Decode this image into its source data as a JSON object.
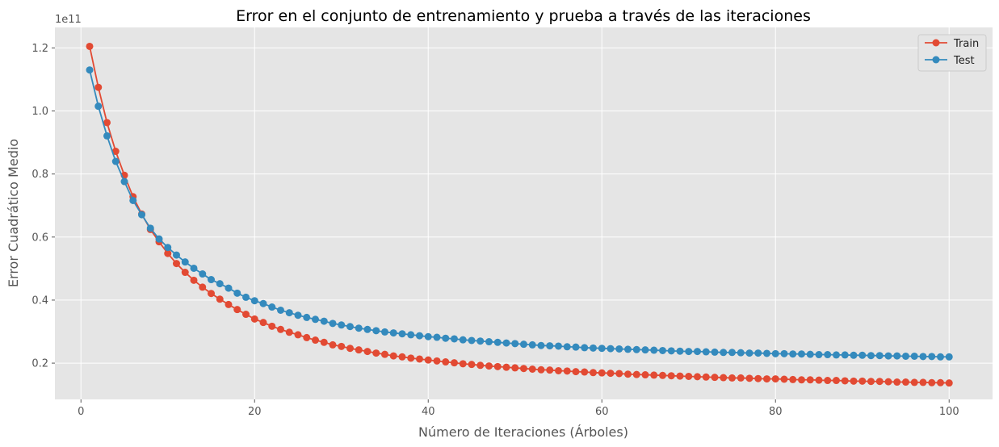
{
  "chart_data": {
    "type": "line",
    "title": "Error en el conjunto de entrenamiento y prueba a través de las iteraciones",
    "xlabel": "Número de Iteraciones (Árboles)",
    "ylabel": "Error Cuadrático Medio",
    "y_offset_label": "1e11",
    "xlim": [
      -3,
      105
    ],
    "ylim": [
      0.085,
      1.265
    ],
    "x_ticks": [
      0,
      20,
      40,
      60,
      80,
      100
    ],
    "y_ticks": [
      0.2,
      0.4,
      0.6,
      0.8,
      1.0,
      1.2
    ],
    "x_tick_labels": [
      "0",
      "20",
      "40",
      "60",
      "80",
      "100"
    ],
    "y_tick_labels": [
      "0.2",
      "0.4",
      "0.6",
      "0.8",
      "1.0",
      "1.2"
    ],
    "grid": true,
    "legend_position": "top-right",
    "x": [
      1,
      2,
      3,
      4,
      5,
      6,
      7,
      8,
      9,
      10,
      11,
      12,
      13,
      14,
      15,
      16,
      17,
      18,
      19,
      20,
      21,
      22,
      23,
      24,
      25,
      26,
      27,
      28,
      29,
      30,
      31,
      32,
      33,
      34,
      35,
      36,
      37,
      38,
      39,
      40,
      41,
      42,
      43,
      44,
      45,
      46,
      47,
      48,
      49,
      50,
      51,
      52,
      53,
      54,
      55,
      56,
      57,
      58,
      59,
      60,
      61,
      62,
      63,
      64,
      65,
      66,
      67,
      68,
      69,
      70,
      71,
      72,
      73,
      74,
      75,
      76,
      77,
      78,
      79,
      80,
      81,
      82,
      83,
      84,
      85,
      86,
      87,
      88,
      89,
      90,
      91,
      92,
      93,
      94,
      95,
      96,
      97,
      98,
      99,
      100
    ],
    "series": [
      {
        "name": "Train",
        "color": "#e24a33",
        "values": [
          1.205,
          1.075,
          0.963,
          0.872,
          0.796,
          0.728,
          0.673,
          0.624,
          0.585,
          0.548,
          0.516,
          0.488,
          0.463,
          0.441,
          0.421,
          0.403,
          0.386,
          0.37,
          0.355,
          0.34,
          0.329,
          0.317,
          0.307,
          0.298,
          0.29,
          0.281,
          0.273,
          0.266,
          0.258,
          0.253,
          0.247,
          0.242,
          0.237,
          0.232,
          0.228,
          0.223,
          0.22,
          0.216,
          0.213,
          0.21,
          0.207,
          0.204,
          0.201,
          0.198,
          0.196,
          0.193,
          0.191,
          0.189,
          0.187,
          0.185,
          0.183,
          0.181,
          0.179,
          0.178,
          0.176,
          0.175,
          0.173,
          0.172,
          0.17,
          0.169,
          0.168,
          0.167,
          0.165,
          0.164,
          0.163,
          0.162,
          0.161,
          0.16,
          0.159,
          0.158,
          0.157,
          0.156,
          0.155,
          0.154,
          0.153,
          0.153,
          0.152,
          0.151,
          0.15,
          0.15,
          0.149,
          0.148,
          0.147,
          0.147,
          0.146,
          0.145,
          0.145,
          0.144,
          0.143,
          0.143,
          0.142,
          0.142,
          0.141,
          0.14,
          0.14,
          0.139,
          0.139,
          0.138,
          0.138,
          0.137
        ]
      },
      {
        "name": "Test",
        "color": "#348abd",
        "values": [
          1.13,
          1.015,
          0.921,
          0.84,
          0.776,
          0.716,
          0.671,
          0.628,
          0.594,
          0.567,
          0.543,
          0.521,
          0.501,
          0.483,
          0.465,
          0.452,
          0.438,
          0.422,
          0.409,
          0.398,
          0.389,
          0.378,
          0.368,
          0.36,
          0.352,
          0.345,
          0.339,
          0.333,
          0.326,
          0.321,
          0.316,
          0.311,
          0.307,
          0.303,
          0.299,
          0.296,
          0.293,
          0.29,
          0.287,
          0.284,
          0.282,
          0.279,
          0.277,
          0.274,
          0.272,
          0.27,
          0.268,
          0.266,
          0.264,
          0.262,
          0.26,
          0.258,
          0.256,
          0.255,
          0.254,
          0.252,
          0.251,
          0.249,
          0.248,
          0.247,
          0.246,
          0.245,
          0.244,
          0.243,
          0.242,
          0.241,
          0.24,
          0.239,
          0.238,
          0.237,
          0.237,
          0.236,
          0.235,
          0.234,
          0.234,
          0.233,
          0.232,
          0.232,
          0.231,
          0.23,
          0.23,
          0.229,
          0.229,
          0.228,
          0.227,
          0.227,
          0.226,
          0.226,
          0.225,
          0.225,
          0.224,
          0.224,
          0.223,
          0.223,
          0.222,
          0.222,
          0.221,
          0.221,
          0.22,
          0.22
        ]
      }
    ]
  }
}
